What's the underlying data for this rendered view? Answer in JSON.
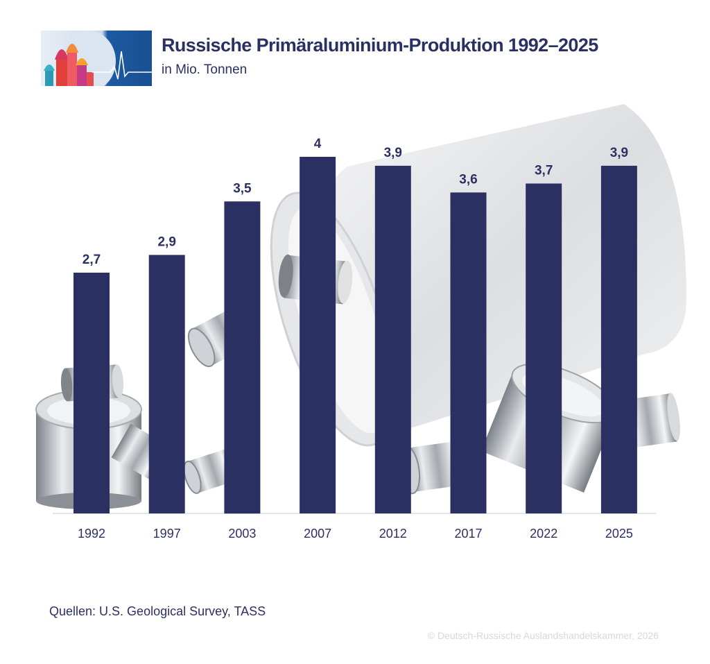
{
  "header": {
    "logo_icon": "moscow-skyline-heartbeat-logo",
    "title": "Russische Primäraluminium-Produktion 1992–2025",
    "subtitle": "in Mio. Tonnen"
  },
  "chart_data": {
    "type": "bar",
    "title": "Russische Primäraluminium-Produktion 1992–2025",
    "subtitle": "in Mio. Tonnen",
    "xlabel": "",
    "ylabel": "",
    "categories": [
      "1992",
      "1997",
      "2003",
      "2007",
      "2012",
      "2017",
      "2022",
      "2025"
    ],
    "values": [
      2.7,
      2.9,
      3.5,
      4,
      3.9,
      3.6,
      3.7,
      3.9
    ],
    "value_labels": [
      "2,7",
      "2,9",
      "3,5",
      "4",
      "3,9",
      "3,6",
      "3,7",
      "3,9"
    ],
    "ylim": [
      0,
      4
    ],
    "grid": false,
    "legend": "none",
    "bar_color": "#2b3063",
    "background_decoration": "aluminium-tubes-illustration"
  },
  "footer": {
    "source": "Quellen: U.S. Geological Survey, TASS",
    "copyright": "© Deutsch-Russische Auslandshandelskammer, 2026"
  },
  "colors": {
    "primary": "#2b3063",
    "logo_blue": "#1c5aa0",
    "copyright_gray": "#d6d8de"
  }
}
